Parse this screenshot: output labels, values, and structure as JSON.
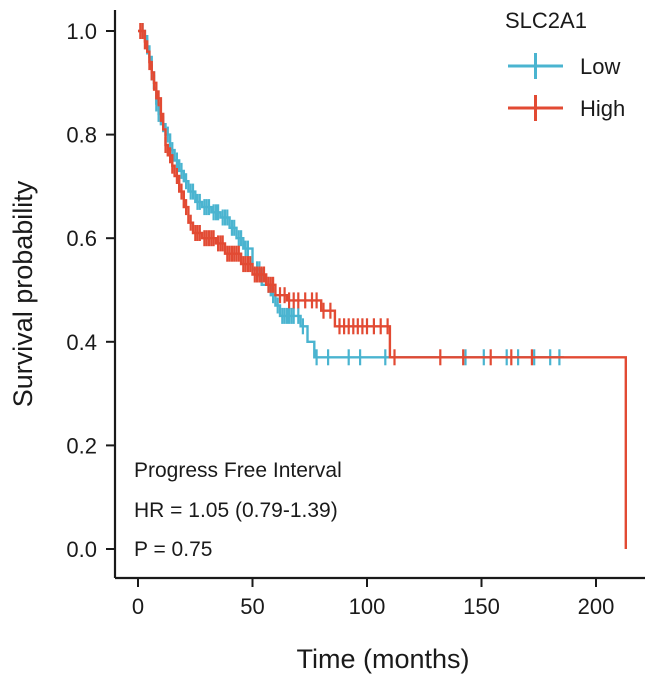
{
  "chart_data": {
    "type": "line",
    "title": "",
    "xlabel": "Time (months)",
    "ylabel": "Survival probability",
    "xlim": [
      0,
      215
    ],
    "ylim": [
      0,
      1.0
    ],
    "x_ticks": [
      0,
      50,
      100,
      150,
      200
    ],
    "y_ticks": [
      0.0,
      0.2,
      0.4,
      0.6,
      0.8,
      1.0
    ],
    "x_tick_labels": [
      "0",
      "50",
      "100",
      "150",
      "200"
    ],
    "y_tick_labels": [
      "0.0",
      "0.2",
      "0.4",
      "0.6",
      "0.8",
      "1.0"
    ],
    "grid": false,
    "legend": {
      "title": "SLC2A1",
      "position": "top-right",
      "entries": [
        "Low",
        "High"
      ]
    },
    "annotations": [
      "Progress Free Interval",
      "HR = 1.05 (0.79-1.39)",
      "P = 0.75"
    ],
    "series": [
      {
        "name": "Low",
        "color": "#4ab4d0",
        "steps": [
          [
            0,
            1.0
          ],
          [
            3,
            0.99
          ],
          [
            4,
            0.97
          ],
          [
            5,
            0.95
          ],
          [
            6,
            0.92
          ],
          [
            7,
            0.89
          ],
          [
            8,
            0.86
          ],
          [
            9,
            0.84
          ],
          [
            10,
            0.82
          ],
          [
            12,
            0.8
          ],
          [
            14,
            0.77
          ],
          [
            16,
            0.75
          ],
          [
            18,
            0.73
          ],
          [
            20,
            0.71
          ],
          [
            22,
            0.69
          ],
          [
            25,
            0.67
          ],
          [
            28,
            0.66
          ],
          [
            32,
            0.65
          ],
          [
            36,
            0.64
          ],
          [
            40,
            0.62
          ],
          [
            43,
            0.6
          ],
          [
            46,
            0.58
          ],
          [
            50,
            0.54
          ],
          [
            54,
            0.51
          ],
          [
            58,
            0.49
          ],
          [
            60,
            0.47
          ],
          [
            62,
            0.45
          ],
          [
            71,
            0.43
          ],
          [
            74,
            0.4
          ],
          [
            77,
            0.37
          ],
          [
            186,
            0.37
          ]
        ],
        "censored": [
          2,
          4,
          6,
          8,
          9,
          11,
          13,
          15,
          17,
          19,
          21,
          23,
          24,
          26,
          27,
          29,
          30,
          31,
          33,
          34,
          35,
          37,
          38,
          39,
          41,
          42,
          44,
          45,
          47,
          48,
          52,
          53,
          57,
          59,
          61,
          63,
          64,
          65,
          66,
          67,
          68,
          70,
          72,
          78,
          83,
          92,
          97,
          108,
          143,
          151,
          161,
          166,
          173,
          180,
          184
        ]
      },
      {
        "name": "High",
        "color": "#e24a33",
        "steps": [
          [
            0,
            1.0
          ],
          [
            3,
            0.98
          ],
          [
            4,
            0.96
          ],
          [
            5,
            0.94
          ],
          [
            6,
            0.92
          ],
          [
            7,
            0.9
          ],
          [
            8,
            0.87
          ],
          [
            10,
            0.84
          ],
          [
            11,
            0.81
          ],
          [
            12,
            0.78
          ],
          [
            13,
            0.76
          ],
          [
            15,
            0.74
          ],
          [
            16,
            0.72
          ],
          [
            18,
            0.69
          ],
          [
            20,
            0.66
          ],
          [
            22,
            0.63
          ],
          [
            24,
            0.61
          ],
          [
            28,
            0.6
          ],
          [
            34,
            0.59
          ],
          [
            38,
            0.57
          ],
          [
            45,
            0.55
          ],
          [
            50,
            0.53
          ],
          [
            56,
            0.51
          ],
          [
            60,
            0.49
          ],
          [
            65,
            0.48
          ],
          [
            80,
            0.46
          ],
          [
            86,
            0.43
          ],
          [
            110,
            0.37
          ],
          [
            213,
            0.37
          ],
          [
            213,
            0.0
          ]
        ],
        "censored": [
          1,
          2,
          3,
          5,
          6,
          7,
          9,
          10,
          12,
          14,
          15,
          17,
          19,
          21,
          23,
          25,
          26,
          27,
          29,
          30,
          31,
          32,
          33,
          35,
          36,
          37,
          39,
          40,
          41,
          42,
          43,
          44,
          46,
          47,
          48,
          49,
          51,
          52,
          53,
          54,
          55,
          57,
          58,
          59,
          62,
          64,
          66,
          68,
          70,
          73,
          76,
          78,
          81,
          84,
          88,
          90,
          92,
          94,
          96,
          98,
          100,
          103,
          106,
          109,
          112,
          132,
          142,
          154,
          163,
          172
        ]
      }
    ]
  }
}
